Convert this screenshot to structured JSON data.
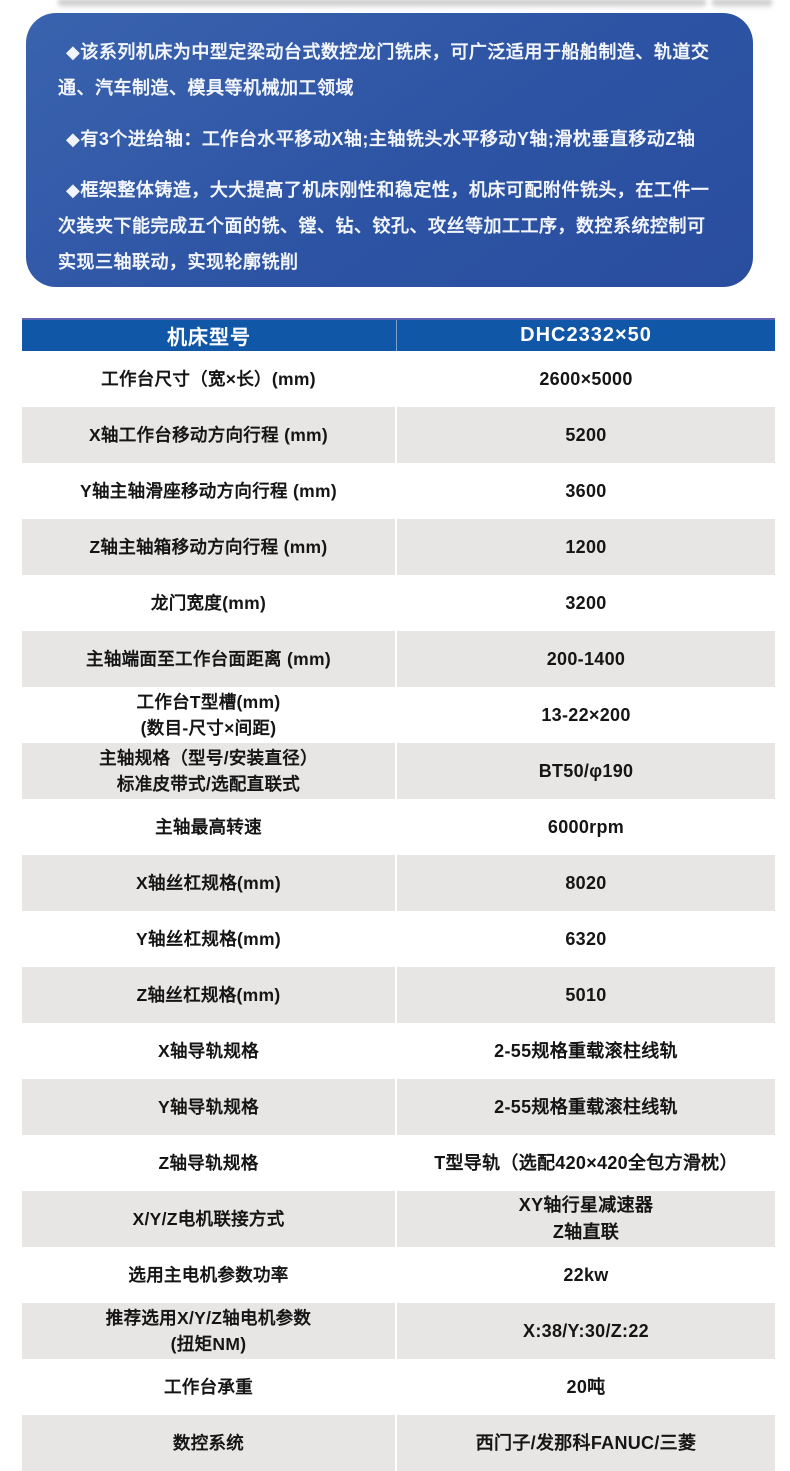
{
  "colors": {
    "intro_gradient_from": "#3a63ae",
    "intro_gradient_to": "#2a4d9f",
    "table_header_bg": "#1157a8",
    "row_alt_bg": "#e8e6e5",
    "text_dark": "#151515",
    "text_white": "#ffffff"
  },
  "intro_box": {
    "bullets": [
      "◆该系列机床为中型定梁动台式数控龙门铣床，可广泛适用于船舶制造、轨道交\n通、汽车制造、模具等机械加工领域",
      "◆有3个进给轴：工作台水平移动X轴;主轴铣头水平移动Y轴;滑枕垂直移动Z轴",
      "◆框架整体铸造，大大提高了机床刚性和稳定性，机床可配附件铣头，在工件一\n次装夹下能完成五个面的铣、镗、钻、铰孔、攻丝等加工工序，数控系统控制可\n实现三轴联动，实现轮廓铣削"
    ]
  },
  "spec_table": {
    "header": {
      "col1": "机床型号",
      "col2": "DHC2332×50"
    },
    "rows": [
      {
        "label": "工作台尺寸（宽×长）(mm)",
        "value": "2600×5000"
      },
      {
        "label": "X轴工作台移动方向行程 (mm)",
        "value": "5200"
      },
      {
        "label": "Y轴主轴滑座移动方向行程 (mm)",
        "value": "3600"
      },
      {
        "label": "Z轴主轴箱移动方向行程 (mm)",
        "value": "1200"
      },
      {
        "label": "龙门宽度(mm)",
        "value": "3200"
      },
      {
        "label": "主轴端面至工作台面距离 (mm)",
        "value": "200-1400"
      },
      {
        "label": "工作台T型槽(mm)\n(数目-尺寸×间距)",
        "value": "13-22×200"
      },
      {
        "label": "主轴规格（型号/安装直径）\n标准皮带式/选配直联式",
        "value": "BT50/φ190"
      },
      {
        "label": "主轴最高转速",
        "value": "6000rpm"
      },
      {
        "label": "X轴丝杠规格(mm)",
        "value": "8020"
      },
      {
        "label": "Y轴丝杠规格(mm)",
        "value": "6320"
      },
      {
        "label": "Z轴丝杠规格(mm)",
        "value": "5010"
      },
      {
        "label": "X轴导轨规格",
        "value": "2-55规格重载滚柱线轨"
      },
      {
        "label": "Y轴导轨规格",
        "value": "2-55规格重载滚柱线轨"
      },
      {
        "label": "Z轴导轨规格",
        "value": "T型导轨（选配420×420全包方滑枕）"
      },
      {
        "label": "X/Y/Z电机联接方式",
        "value": "XY轴行星减速器\nZ轴直联"
      },
      {
        "label": "选用主电机参数功率",
        "value": "22kw"
      },
      {
        "label": "推荐选用X/Y/Z轴电机参数\n(扭矩NM)",
        "value": "X:38/Y:30/Z:22"
      },
      {
        "label": "工作台承重",
        "value": "20吨"
      },
      {
        "label": "数控系统",
        "value": "西门子/发那科FANUC/三菱"
      }
    ]
  }
}
